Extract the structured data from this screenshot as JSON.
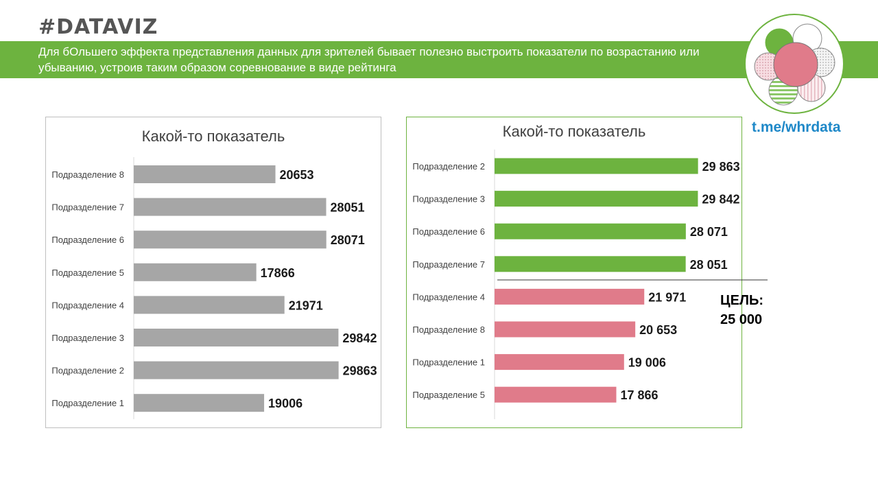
{
  "header": {
    "tag": "#DATAVIZ",
    "banner_text": "Для бОльшего эффекта представления данных для зрителей бывает полезно выстроить показатели по возрастанию или убыванию, устроив таким образом соревнование в виде рейтинга",
    "link": "t.me/whrdata"
  },
  "colors": {
    "accent": "#6db33f",
    "gray_bar": "#a6a6a6",
    "green_bar": "#6db33f",
    "pink_bar": "#e07b8a",
    "link": "#1e88c8"
  },
  "goal": {
    "label": "ЦЕЛЬ:",
    "value": "25 000",
    "numeric": 25000
  },
  "chart_data": [
    {
      "type": "bar",
      "orientation": "horizontal",
      "title": "Какой-то показатель",
      "categories": [
        "Подразделение 8",
        "Подразделение 7",
        "Подразделение 6",
        "Подразделение 5",
        "Подразделение 4",
        "Подразделение 3",
        "Подразделение 2",
        "Подразделение 1"
      ],
      "values": [
        20653,
        28051,
        28071,
        17866,
        21971,
        29842,
        29863,
        19006
      ],
      "labels": [
        "20653",
        "28051",
        "28071",
        "17866",
        "21971",
        "29842",
        "29863",
        "19006"
      ],
      "xlim": [
        0,
        30000
      ]
    },
    {
      "type": "bar",
      "orientation": "horizontal",
      "title": "Какой-то показатель",
      "categories": [
        "Подразделение 2",
        "Подразделение 3",
        "Подразделение 6",
        "Подразделение 7",
        "Подразделение 4",
        "Подразделение 8",
        "Подразделение 1",
        "Подразделение 5"
      ],
      "values": [
        29863,
        29842,
        28071,
        28051,
        21971,
        20653,
        19006,
        17866
      ],
      "labels": [
        "29 863",
        "29 842",
        "28 071",
        "28 051",
        "21 971",
        "20 653",
        "19 006",
        "17 866"
      ],
      "xlim": [
        0,
        30000
      ],
      "target": 25000
    }
  ]
}
